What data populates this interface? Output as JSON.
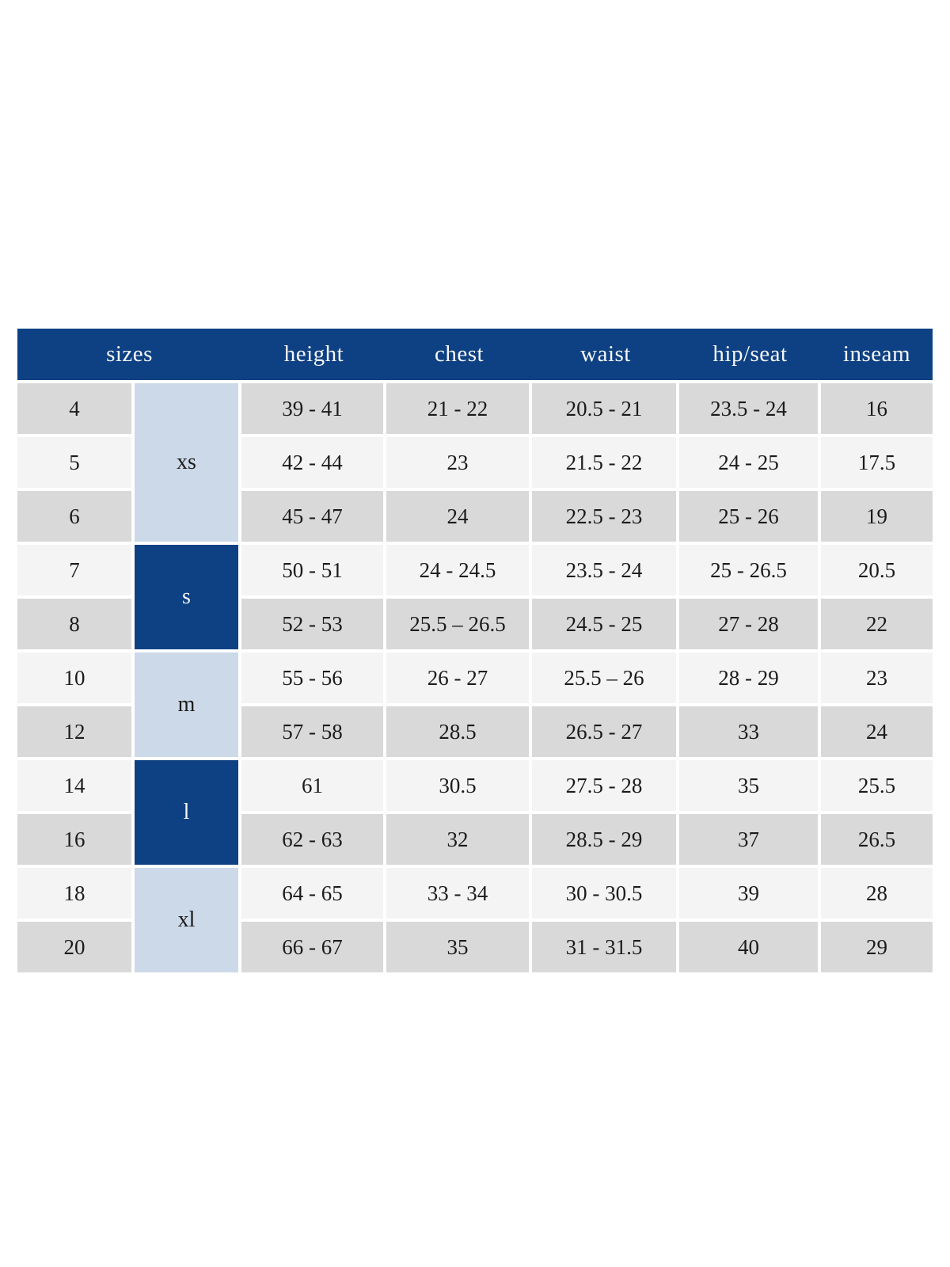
{
  "table": {
    "headers": [
      "sizes",
      "height",
      "chest",
      "waist",
      "hip/seat",
      "inseam"
    ],
    "colors": {
      "header_bg": "#0e4183",
      "header_text": "#f7f7f7",
      "group_light_bg": "#ccd9e8",
      "group_dark_bg": "#0e4183",
      "row_gray_bg": "#d9d9d9",
      "row_light_bg": "#f4f4f4",
      "cell_text": "#1b1b1b",
      "separator": "#ffffff"
    },
    "groups": [
      {
        "label": "xs",
        "sizes": [
          "4",
          "5",
          "6"
        ]
      },
      {
        "label": "s",
        "sizes": [
          "7",
          "8"
        ]
      },
      {
        "label": "m",
        "sizes": [
          "10",
          "12"
        ]
      },
      {
        "label": "l",
        "sizes": [
          "14",
          "16"
        ]
      },
      {
        "label": "xl",
        "sizes": [
          "18",
          "20"
        ]
      }
    ],
    "rows": [
      {
        "size": "4",
        "height": "39 - 41",
        "chest": "21 - 22",
        "waist": "20.5 - 21",
        "hip_seat": "23.5 - 24",
        "inseam": "16"
      },
      {
        "size": "5",
        "height": "42 - 44",
        "chest": "23",
        "waist": "21.5 - 22",
        "hip_seat": "24 - 25",
        "inseam": "17.5"
      },
      {
        "size": "6",
        "height": "45 - 47",
        "chest": "24",
        "waist": "22.5 - 23",
        "hip_seat": "25 - 26",
        "inseam": "19"
      },
      {
        "size": "7",
        "height": "50 - 51",
        "chest": "24 - 24.5",
        "waist": "23.5 - 24",
        "hip_seat": "25 - 26.5",
        "inseam": "20.5"
      },
      {
        "size": "8",
        "height": "52 - 53",
        "chest": "25.5 – 26.5",
        "waist": "24.5 - 25",
        "hip_seat": "27 - 28",
        "inseam": "22"
      },
      {
        "size": "10",
        "height": "55 - 56",
        "chest": "26 - 27",
        "waist": "25.5 – 26",
        "hip_seat": "28 - 29",
        "inseam": "23"
      },
      {
        "size": "12",
        "height": "57 - 58",
        "chest": "28.5",
        "waist": "26.5 - 27",
        "hip_seat": "33",
        "inseam": "24"
      },
      {
        "size": "14",
        "height": "61",
        "chest": "30.5",
        "waist": "27.5 - 28",
        "hip_seat": "35",
        "inseam": "25.5"
      },
      {
        "size": "16",
        "height": "62 - 63",
        "chest": "32",
        "waist": "28.5 - 29",
        "hip_seat": "37",
        "inseam": "26.5"
      },
      {
        "size": "18",
        "height": "64 - 65",
        "chest": "33 - 34",
        "waist": "30 - 30.5",
        "hip_seat": "39",
        "inseam": "28"
      },
      {
        "size": "20",
        "height": "66 - 67",
        "chest": "35",
        "waist": "31 - 31.5",
        "hip_seat": "40",
        "inseam": "29"
      }
    ]
  }
}
